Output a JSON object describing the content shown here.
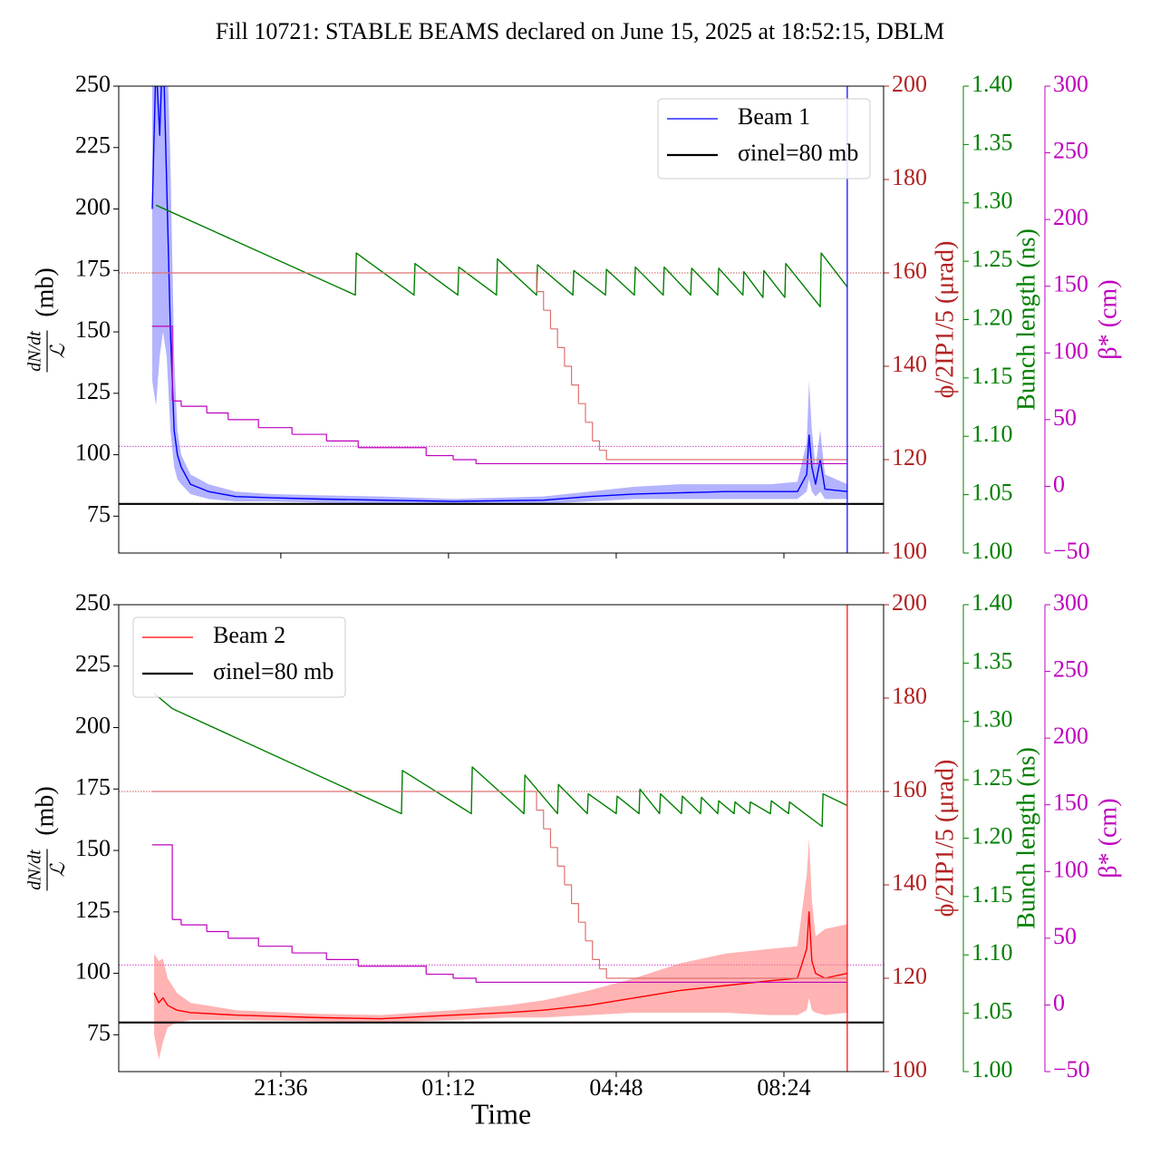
{
  "title": "Fill 10721: STABLE BEAMS declared on June 15, 2025 at 18:52:15, DBLM",
  "chart_data": [
    {
      "type": "line",
      "ylabel": {
        "numerator": "dN/dt",
        "denominator": "ℒ",
        "unit": "(mb)"
      },
      "y2label": "ϕ/2IP1/5 (μrad)",
      "y3label": "Bunch length (ns)",
      "y4label": "β* (cm)",
      "y2color": "#b22222",
      "y3color": "#008000",
      "y4color": "#bf00bf",
      "xlim": [
        18.12,
        34.54
      ],
      "ylim": [
        60,
        250
      ],
      "yticks": [
        75,
        100,
        125,
        150,
        175,
        200,
        225,
        250
      ],
      "y2lim": [
        100,
        200
      ],
      "y2ticks": [
        100,
        120,
        140,
        160,
        180,
        200
      ],
      "y3lim": [
        1.0,
        1.4
      ],
      "y3ticks": [
        {
          "value": 1.0,
          "label": "1.00"
        },
        1.05,
        {
          "value": 1.1,
          "label": "1.10"
        },
        1.15,
        {
          "value": 1.2,
          "label": "1.20"
        },
        1.25,
        {
          "value": 1.3,
          "label": "1.30"
        },
        1.35,
        {
          "value": 1.4,
          "label": "1.40"
        }
      ],
      "y4lim": [
        -50,
        300
      ],
      "y4ticks": [
        {
          "value": -50,
          "label": "−50"
        },
        0,
        50,
        100,
        150,
        200,
        250,
        300
      ],
      "legend": "upper right",
      "series": [
        {
          "name": "Beam 1",
          "color": "#0000ff",
          "band_color": "#8080ff",
          "x": [
            18.84,
            18.92,
            19.0,
            19.07,
            19.15,
            19.23,
            19.31,
            19.38,
            19.46,
            19.66,
            20.05,
            20.63,
            21.41,
            22.38,
            23.74,
            25.3,
            27.24,
            28.22,
            29.19,
            30.16,
            31.14,
            32.12,
            32.69,
            32.89,
            32.94,
            33.0,
            33.08,
            33.18,
            33.28,
            33.76
          ],
          "values": [
            200,
            260,
            230,
            270,
            210,
            150,
            110,
            100,
            95,
            88,
            85,
            83,
            82.5,
            82,
            81.5,
            81,
            81.5,
            83,
            84,
            84.5,
            85,
            85,
            85,
            92,
            108,
            95,
            88,
            98,
            86,
            85
          ],
          "band_low": [
            130,
            120,
            140,
            150,
            140,
            110,
            95,
            90,
            88,
            84,
            82,
            81,
            81,
            80.5,
            80,
            80,
            80,
            81,
            82,
            82,
            82,
            82,
            82,
            85,
            90,
            85,
            83,
            85,
            82,
            82
          ],
          "band_high": [
            260,
            280,
            280,
            280,
            270,
            220,
            140,
            110,
            100,
            92,
            88,
            85,
            84,
            83.5,
            83,
            82,
            83,
            85,
            87,
            88,
            88,
            88,
            89,
            105,
            130,
            110,
            95,
            110,
            92,
            88
          ]
        },
        {
          "name": "σinel=80 mb",
          "color": "#000000",
          "level": 80
        },
        {
          "axis": "y3",
          "color": "#008000",
          "x": [
            18.92,
            23.2,
            23.22,
            24.46,
            24.48,
            25.4,
            25.42,
            26.23,
            26.25,
            27.09,
            27.11,
            27.87,
            27.89,
            28.57,
            28.59,
            29.19,
            29.21,
            29.81,
            29.83,
            30.4,
            30.42,
            30.98,
            31.0,
            31.52,
            31.54,
            31.95,
            31.97,
            32.42,
            32.44,
            33.18,
            33.2,
            33.76
          ],
          "values": [
            1.298,
            1.221,
            1.257,
            1.221,
            1.248,
            1.221,
            1.245,
            1.221,
            1.252,
            1.221,
            1.247,
            1.221,
            1.242,
            1.221,
            1.243,
            1.221,
            1.245,
            1.221,
            1.245,
            1.221,
            1.244,
            1.221,
            1.244,
            1.221,
            1.241,
            1.219,
            1.242,
            1.219,
            1.248,
            1.211,
            1.257,
            1.228
          ]
        },
        {
          "axis": "y2",
          "color": "#e07070",
          "step": true,
          "x": [
            18.84,
            27.09,
            27.24,
            27.39,
            27.54,
            27.69,
            27.84,
            27.99,
            28.14,
            28.29,
            28.44,
            28.59,
            33.76
          ],
          "values": [
            160,
            156,
            152,
            148,
            144,
            140,
            136,
            132,
            128,
            124,
            122,
            120,
            120
          ]
        },
        {
          "axis": "y4",
          "color": "#bf00bf",
          "step": true,
          "x": [
            18.84,
            19.27,
            19.46,
            20.01,
            20.47,
            21.12,
            21.84,
            22.58,
            23.26,
            24.72,
            25.3,
            25.79,
            33.76
          ],
          "values": [
            120,
            64,
            60,
            55,
            50,
            44,
            39,
            34,
            29,
            23,
            20,
            17,
            17
          ]
        }
      ],
      "hlines": [
        {
          "axis": "y2",
          "value": 160,
          "color": "#b22222"
        },
        {
          "axis": "y4",
          "value": 30,
          "color": "#bf00bf"
        }
      ],
      "vline": {
        "x": 33.76,
        "color": "#0000ff"
      }
    },
    {
      "type": "line",
      "ylabel": {
        "numerator": "dN/dt",
        "denominator": "ℒ",
        "unit": "(mb)"
      },
      "y2label": "ϕ/2IP1/5 (μrad)",
      "y3label": "Bunch length (ns)",
      "y4label": "β* (cm)",
      "y2color": "#b22222",
      "y3color": "#008000",
      "y4color": "#bf00bf",
      "xlabel": "Time",
      "xlim": [
        18.12,
        34.54
      ],
      "xticks": [
        {
          "value": 21.6,
          "label": "21:36"
        },
        {
          "value": 25.2,
          "label": "01:12"
        },
        {
          "value": 28.8,
          "label": "04:48"
        },
        {
          "value": 32.4,
          "label": "08:24"
        }
      ],
      "ylim": [
        60,
        250
      ],
      "yticks": [
        75,
        100,
        125,
        150,
        175,
        200,
        225,
        250
      ],
      "y2lim": [
        100,
        200
      ],
      "y2ticks": [
        100,
        120,
        140,
        160,
        180,
        200
      ],
      "y3lim": [
        1.0,
        1.4
      ],
      "y3ticks": [
        {
          "value": 1.0,
          "label": "1.00"
        },
        1.05,
        {
          "value": 1.1,
          "label": "1.10"
        },
        1.15,
        {
          "value": 1.2,
          "label": "1.20"
        },
        1.25,
        {
          "value": 1.3,
          "label": "1.30"
        },
        1.35,
        {
          "value": 1.4,
          "label": "1.40"
        }
      ],
      "y4lim": [
        -50,
        300
      ],
      "y4ticks": [
        {
          "value": -50,
          "label": "−50"
        },
        0,
        50,
        100,
        150,
        200,
        250,
        300
      ],
      "legend": "upper left",
      "series": [
        {
          "name": "Beam 2",
          "color": "#ff0000",
          "band_color": "#ff8080",
          "x": [
            18.88,
            18.98,
            19.07,
            19.17,
            19.37,
            19.66,
            20.63,
            22.38,
            23.74,
            25.3,
            26.47,
            27.24,
            28.22,
            29.19,
            30.16,
            31.14,
            32.12,
            32.69,
            32.89,
            32.94,
            33.0,
            33.08,
            33.28,
            33.76
          ],
          "values": [
            92,
            88,
            90,
            87,
            85,
            84,
            83,
            82,
            81.5,
            83,
            84,
            85,
            87,
            90,
            93,
            95,
            97,
            98,
            110,
            125,
            105,
            100,
            98,
            100
          ],
          "band_low": [
            75,
            65,
            72,
            78,
            80,
            81,
            81,
            80.5,
            80,
            81,
            82,
            82,
            83,
            84,
            84,
            84,
            83,
            83,
            85,
            90,
            85,
            84,
            83,
            84
          ],
          "band_high": [
            108,
            105,
            106,
            98,
            92,
            88,
            85,
            83.5,
            83,
            85,
            87,
            89,
            93,
            98,
            104,
            108,
            110,
            111,
            140,
            155,
            130,
            115,
            118,
            120
          ]
        },
        {
          "name": "σinel=80 mb",
          "color": "#000000",
          "level": 80
        },
        {
          "axis": "y3",
          "color": "#008000",
          "x": [
            18.88,
            19.27,
            24.19,
            24.21,
            25.69,
            25.71,
            26.82,
            26.84,
            27.54,
            27.56,
            28.18,
            28.2,
            28.8,
            28.82,
            29.29,
            29.31,
            29.73,
            29.75,
            30.2,
            30.22,
            30.61,
            30.63,
            30.98,
            31.0,
            31.33,
            31.35,
            31.66,
            31.68,
            32.11,
            32.13,
            32.5,
            32.52,
            33.22,
            33.24,
            33.76
          ],
          "values": [
            1.324,
            1.311,
            1.221,
            1.258,
            1.221,
            1.261,
            1.221,
            1.254,
            1.221,
            1.246,
            1.221,
            1.238,
            1.221,
            1.236,
            1.221,
            1.242,
            1.221,
            1.238,
            1.221,
            1.236,
            1.221,
            1.235,
            1.221,
            1.232,
            1.221,
            1.231,
            1.221,
            1.231,
            1.221,
            1.232,
            1.221,
            1.231,
            1.21,
            1.238,
            1.228
          ]
        },
        {
          "axis": "y2",
          "color": "#e07070",
          "step": true,
          "x": [
            18.84,
            27.09,
            27.24,
            27.39,
            27.54,
            27.69,
            27.84,
            27.99,
            28.14,
            28.29,
            28.44,
            28.59,
            33.76
          ],
          "values": [
            160,
            156,
            152,
            148,
            144,
            140,
            136,
            132,
            128,
            124,
            122,
            120,
            120
          ]
        },
        {
          "axis": "y4",
          "color": "#bf00bf",
          "step": true,
          "x": [
            18.84,
            19.27,
            19.46,
            20.01,
            20.47,
            21.12,
            21.84,
            22.58,
            23.26,
            24.72,
            25.3,
            25.79,
            33.76
          ],
          "values": [
            120,
            64,
            60,
            55,
            50,
            44,
            39,
            34,
            29,
            23,
            20,
            17,
            17
          ]
        }
      ],
      "hlines": [
        {
          "axis": "y2",
          "value": 160,
          "color": "#b22222"
        },
        {
          "axis": "y4",
          "value": 30,
          "color": "#bf00bf"
        }
      ],
      "vline": {
        "x": 33.76,
        "color": "#ff0000"
      }
    }
  ]
}
